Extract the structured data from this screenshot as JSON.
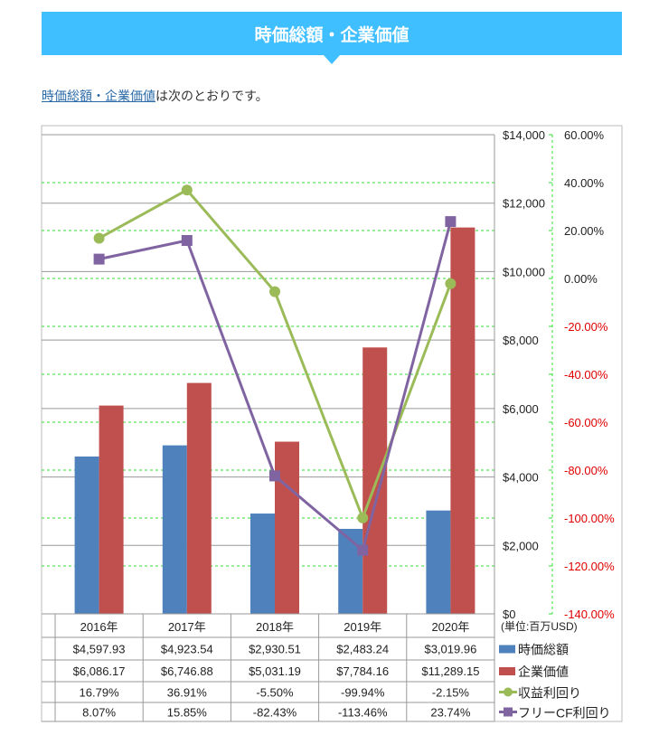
{
  "header": {
    "title": "時価総額・企業価値"
  },
  "intro": {
    "link": "時価総額・企業価値",
    "text": "は次のとおりです。"
  },
  "chart_data": {
    "type": "bar+line",
    "categories": [
      "2016年",
      "2017年",
      "2018年",
      "2019年",
      "2020年"
    ],
    "left_axis": {
      "ylim": [
        0,
        14000
      ],
      "step": 2000,
      "ticks": [
        "$0",
        "$2,000",
        "$4,000",
        "$6,000",
        "$8,000",
        "$10,000",
        "$12,000",
        "$14,000"
      ]
    },
    "right_axis": {
      "ylim": [
        -140,
        60
      ],
      "step": 20,
      "ticks": [
        "-140.00%",
        "-120.00%",
        "-100.00%",
        "-80.00%",
        "-60.00%",
        "-40.00%",
        "-20.00%",
        "0.00%",
        "20.00%",
        "40.00%",
        "60.00%"
      ]
    },
    "unit": "(単位:百万USD)",
    "series": [
      {
        "name": "時価総額",
        "type": "bar",
        "axis": "left",
        "color": "#4f81bd",
        "values": [
          4597.93,
          4923.54,
          2930.51,
          2483.24,
          3019.96
        ],
        "labels": [
          "$4,597.93",
          "$4,923.54",
          "$2,930.51",
          "$2,483.24",
          "$3,019.96"
        ]
      },
      {
        "name": "企業価値",
        "type": "bar",
        "axis": "left",
        "color": "#c0504d",
        "values": [
          6086.17,
          6746.88,
          5031.19,
          7784.16,
          11289.15
        ],
        "labels": [
          "$6,086.17",
          "$6,746.88",
          "$5,031.19",
          "$7,784.16",
          "$11,289.15"
        ]
      },
      {
        "name": "収益利回り",
        "type": "line",
        "axis": "right",
        "color": "#9bbb59",
        "marker": "circle",
        "values": [
          16.79,
          36.91,
          -5.5,
          -99.94,
          -2.15
        ],
        "labels": [
          "16.79%",
          "36.91%",
          "-5.50%",
          "-99.94%",
          "-2.15%"
        ]
      },
      {
        "name": "フリーCF利回り",
        "type": "line",
        "axis": "right",
        "color": "#8064a2",
        "marker": "square",
        "values": [
          8.07,
          15.85,
          -82.43,
          -113.46,
          23.74
        ],
        "labels": [
          "8.07%",
          "15.85%",
          "-82.43%",
          "-113.46%",
          "23.74%"
        ]
      }
    ]
  }
}
